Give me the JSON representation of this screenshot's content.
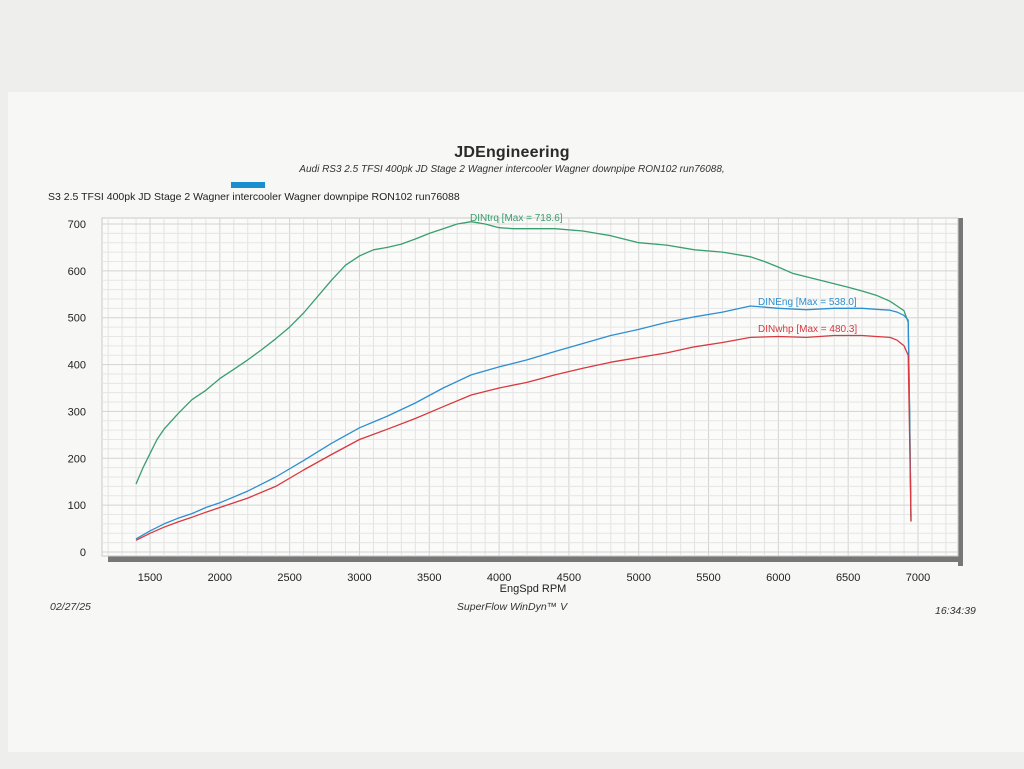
{
  "header": {
    "title": "JDEngineering",
    "subtitle": "Audi RS3 2.5 TFSI 400pk  JD Stage 2  Wagner intercooler Wagner downpipe  RON102   run76088,",
    "run_label": "S3 2.5 TFSI 400pk  JD Stage 2  Wagner intercooler Wagner downpipe  RON102   run76088",
    "run_color": "#1a8fd0"
  },
  "footer": {
    "date": "02/27/25",
    "software": "SuperFlow WinDyn™ V",
    "time": "16:34:39"
  },
  "chart_data": {
    "type": "line",
    "xlabel": "EngSpd  RPM",
    "ylabel": "",
    "xlim": [
      1000,
      7300
    ],
    "ylim": [
      0,
      700
    ],
    "x_ticks": [
      1500,
      2000,
      2500,
      3000,
      3500,
      4000,
      4500,
      5000,
      5500,
      6000,
      6500,
      7000
    ],
    "y_ticks": [
      0,
      100,
      200,
      300,
      400,
      500,
      600,
      700
    ],
    "grid": true,
    "series": [
      {
        "name": "DINtrq",
        "label": "DINtrq [Max = 718.6]",
        "color": "#3a9e6e",
        "x": [
          1400,
          1450,
          1500,
          1550,
          1600,
          1700,
          1800,
          1900,
          2000,
          2100,
          2200,
          2300,
          2400,
          2500,
          2600,
          2700,
          2800,
          2900,
          3000,
          3100,
          3200,
          3300,
          3400,
          3500,
          3600,
          3700,
          3800,
          3900,
          4000,
          4100,
          4200,
          4400,
          4600,
          4700,
          4800,
          5000,
          5200,
          5400,
          5600,
          5800,
          5900,
          6000,
          6100,
          6300,
          6500,
          6600,
          6700,
          6800,
          6850,
          6900,
          6930,
          6940,
          6950
        ],
        "values": [
          145,
          180,
          210,
          240,
          262,
          295,
          325,
          345,
          370,
          390,
          410,
          432,
          455,
          480,
          510,
          545,
          580,
          612,
          632,
          645,
          650,
          657,
          668,
          680,
          690,
          700,
          705,
          700,
          692,
          690,
          690,
          690,
          685,
          680,
          675,
          660,
          655,
          645,
          640,
          630,
          620,
          608,
          595,
          580,
          565,
          557,
          548,
          535,
          525,
          515,
          490,
          300,
          65
        ]
      },
      {
        "name": "DINEng",
        "label": "DINEng [Max = 538.0]",
        "color": "#2d8fd0",
        "x": [
          1400,
          1500,
          1600,
          1700,
          1800,
          1900,
          2000,
          2200,
          2400,
          2600,
          2800,
          3000,
          3200,
          3400,
          3600,
          3800,
          4000,
          4200,
          4400,
          4600,
          4800,
          5000,
          5200,
          5400,
          5600,
          5800,
          6000,
          6200,
          6400,
          6600,
          6700,
          6800,
          6850,
          6900,
          6930,
          6940,
          6950
        ],
        "values": [
          28,
          45,
          60,
          72,
          82,
          95,
          105,
          130,
          160,
          195,
          232,
          265,
          290,
          318,
          350,
          378,
          395,
          410,
          428,
          445,
          462,
          475,
          490,
          502,
          512,
          525,
          520,
          517,
          520,
          520,
          518,
          516,
          512,
          505,
          495,
          300,
          75
        ]
      },
      {
        "name": "DINwhp",
        "label": "DINwhp [Max = 480.3]",
        "color": "#d8393f",
        "x": [
          1400,
          1500,
          1600,
          1700,
          1800,
          1900,
          2000,
          2200,
          2400,
          2600,
          2800,
          3000,
          3200,
          3400,
          3600,
          3800,
          4000,
          4200,
          4400,
          4600,
          4800,
          5000,
          5200,
          5400,
          5600,
          5800,
          6000,
          6200,
          6400,
          6600,
          6700,
          6800,
          6850,
          6900,
          6930,
          6940,
          6950
        ],
        "values": [
          25,
          40,
          53,
          64,
          74,
          85,
          95,
          115,
          140,
          175,
          208,
          240,
          262,
          285,
          310,
          335,
          350,
          362,
          378,
          392,
          405,
          415,
          425,
          438,
          447,
          458,
          460,
          458,
          462,
          462,
          460,
          458,
          452,
          440,
          420,
          250,
          65
        ]
      }
    ]
  }
}
